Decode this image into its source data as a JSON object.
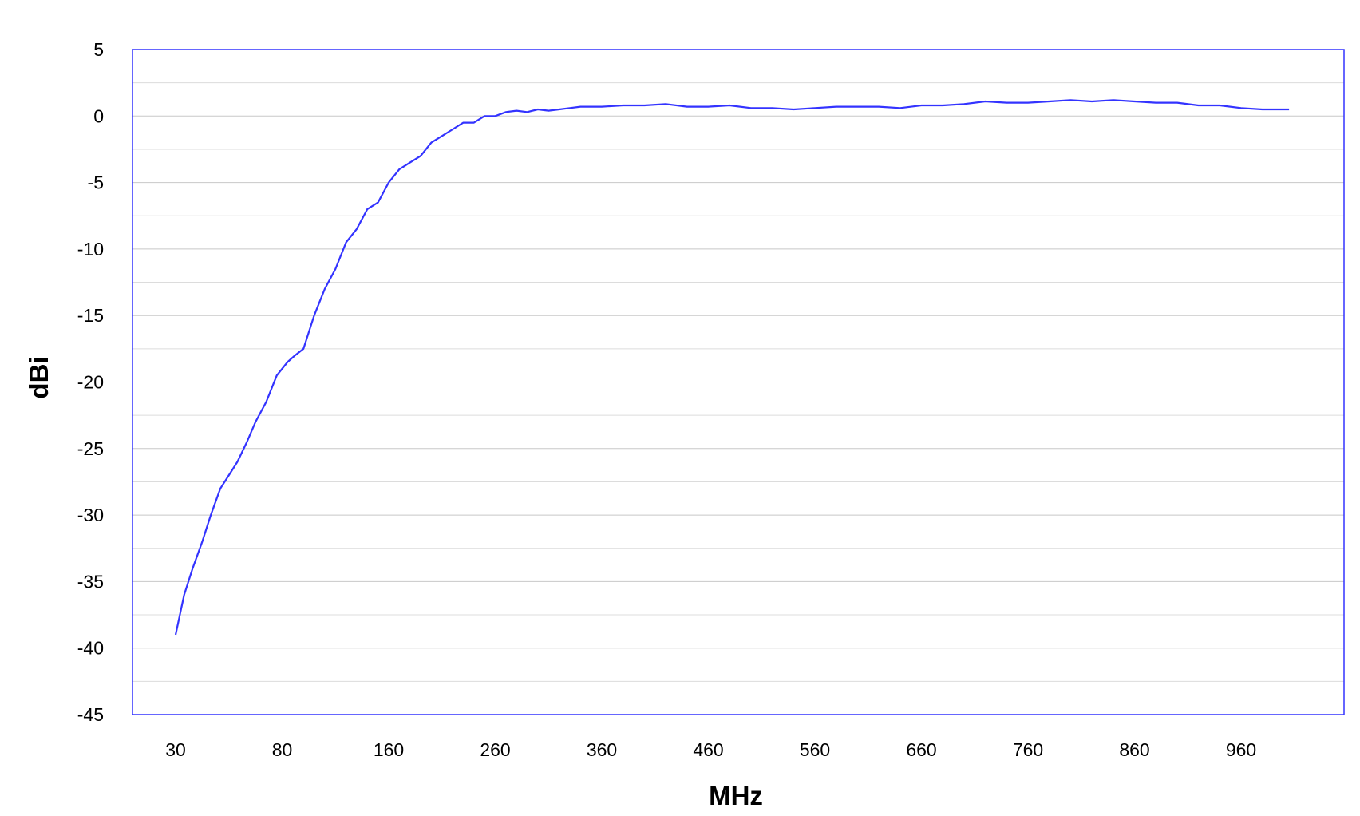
{
  "chart_data": {
    "type": "line",
    "title": "",
    "xlabel": "MHz",
    "ylabel": "dBi",
    "x_tick_labels": [
      "30",
      "80",
      "160",
      "260",
      "360",
      "460",
      "560",
      "660",
      "760",
      "860",
      "960"
    ],
    "y_ticks": [
      5,
      0,
      -5,
      -10,
      -15,
      -20,
      -25,
      -30,
      -35,
      -40,
      -45
    ],
    "ylim": [
      -45,
      5
    ],
    "grid": {
      "major": true,
      "minor": true
    },
    "line_color": "#3333ff",
    "series": [
      {
        "x_index": [
          0,
          0.08,
          0.16,
          0.25,
          0.33,
          0.42,
          0.5,
          0.58,
          0.67,
          0.75,
          0.85,
          0.95,
          1.05,
          1.12,
          1.2,
          1.3,
          1.4,
          1.5,
          1.6,
          1.7,
          1.8,
          1.9,
          2.0,
          2.1,
          2.2,
          2.3,
          2.4,
          2.5,
          2.6,
          2.7,
          2.8,
          2.9,
          3.0,
          3.1,
          3.2,
          3.3,
          3.4,
          3.5,
          3.6,
          3.7,
          3.8,
          3.9,
          4.0,
          4.2,
          4.4,
          4.6,
          4.8,
          5.0,
          5.2,
          5.4,
          5.6,
          5.8,
          6.0,
          6.2,
          6.4,
          6.6,
          6.8,
          7.0,
          7.2,
          7.4,
          7.6,
          7.8,
          8.0,
          8.2,
          8.4,
          8.6,
          8.8,
          9.0,
          9.2,
          9.4,
          9.6,
          9.8,
          10.0,
          10.2,
          10.45
        ],
        "values": [
          -39,
          -36,
          -34,
          -32,
          -30,
          -28,
          -27,
          -26,
          -24.5,
          -23,
          -21.5,
          -19.5,
          -18.5,
          -18,
          -17.5,
          -15,
          -13,
          -11.5,
          -9.5,
          -8.5,
          -7,
          -6.5,
          -5,
          -4,
          -3.5,
          -3,
          -2,
          -1.5,
          -1,
          -0.5,
          -0.5,
          0,
          0,
          0.3,
          0.4,
          0.3,
          0.5,
          0.4,
          0.5,
          0.6,
          0.7,
          0.7,
          0.7,
          0.8,
          0.8,
          0.9,
          0.7,
          0.7,
          0.8,
          0.6,
          0.6,
          0.5,
          0.6,
          0.7,
          0.7,
          0.7,
          0.6,
          0.8,
          0.8,
          0.9,
          1.1,
          1.0,
          1.0,
          1.1,
          1.2,
          1.1,
          1.2,
          1.1,
          1.0,
          1.0,
          0.8,
          0.8,
          0.6,
          0.5,
          0.5
        ]
      }
    ]
  }
}
